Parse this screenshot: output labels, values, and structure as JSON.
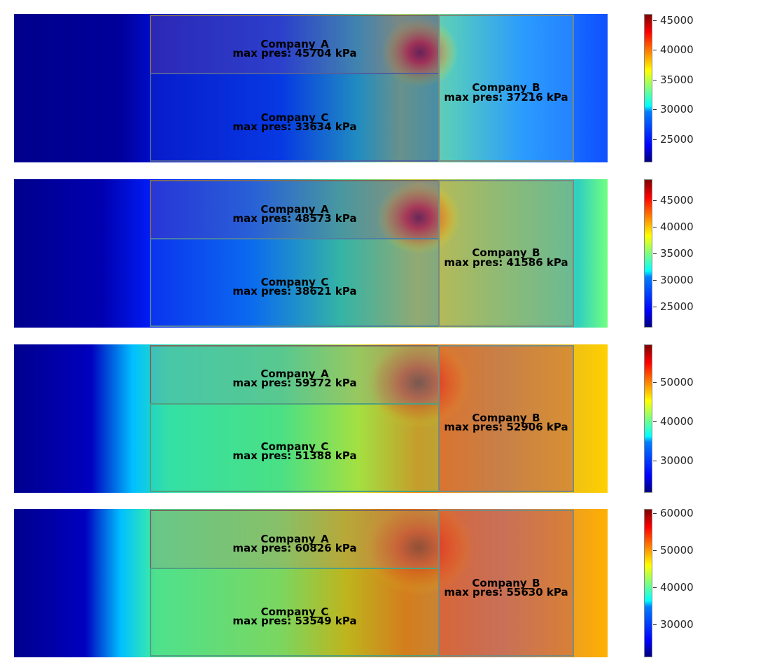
{
  "chart_data": [
    {
      "type": "heatmap",
      "colormap": "jet",
      "vmin": 21000,
      "vmax": 45900,
      "colorbar_ticks": [
        25000,
        30000,
        35000,
        40000,
        45000
      ],
      "colorbar_tick_labels": [
        "25000",
        "30000",
        "35000",
        "40000",
        "45000"
      ],
      "regions": [
        {
          "name": "Company_A",
          "max_pressure_label": "max pres: 45704 kPa",
          "max_pressure_kPa": 45704
        },
        {
          "name": "Company_B",
          "max_pressure_label": "max pres: 37216 kPa",
          "max_pressure_kPa": 37216
        },
        {
          "name": "Company_C",
          "max_pressure_label": "max pres: 33634 kPa",
          "max_pressure_kPa": 33634
        }
      ]
    },
    {
      "type": "heatmap",
      "colormap": "jet",
      "vmin": 21000,
      "vmax": 48800,
      "colorbar_ticks": [
        25000,
        30000,
        35000,
        40000,
        45000
      ],
      "colorbar_tick_labels": [
        "25000",
        "30000",
        "35000",
        "40000",
        "45000"
      ],
      "regions": [
        {
          "name": "Company_A",
          "max_pressure_label": "max pres: 48573 kPa",
          "max_pressure_kPa": 48573
        },
        {
          "name": "Company_B",
          "max_pressure_label": "max pres: 41586 kPa",
          "max_pressure_kPa": 41586
        },
        {
          "name": "Company_C",
          "max_pressure_label": "max pres: 38621 kPa",
          "max_pressure_kPa": 38621
        }
      ]
    },
    {
      "type": "heatmap",
      "colormap": "jet",
      "vmin": 21500,
      "vmax": 59500,
      "colorbar_ticks": [
        30000,
        40000,
        50000
      ],
      "colorbar_tick_labels": [
        "30000",
        "40000",
        "50000"
      ],
      "regions": [
        {
          "name": "Company_A",
          "max_pressure_label": "max pres: 59372 kPa",
          "max_pressure_kPa": 59372
        },
        {
          "name": "Company_B",
          "max_pressure_label": "max pres: 52906 kPa",
          "max_pressure_kPa": 52906
        },
        {
          "name": "Company_C",
          "max_pressure_label": "max pres: 51388 kPa",
          "max_pressure_kPa": 51388
        }
      ]
    },
    {
      "type": "heatmap",
      "colormap": "jet",
      "vmin": 21000,
      "vmax": 61000,
      "colorbar_ticks": [
        30000,
        40000,
        50000,
        60000
      ],
      "colorbar_tick_labels": [
        "30000",
        "40000",
        "50000",
        "60000"
      ],
      "regions": [
        {
          "name": "Company_A",
          "max_pressure_label": "max pres: 60826 kPa",
          "max_pressure_kPa": 60826
        },
        {
          "name": "Company_B",
          "max_pressure_label": "max pres: 55630 kPa",
          "max_pressure_kPa": 55630
        },
        {
          "name": "Company_C",
          "max_pressure_label": "max pres: 53549 kPa",
          "max_pressure_kPa": 53549
        }
      ]
    }
  ]
}
